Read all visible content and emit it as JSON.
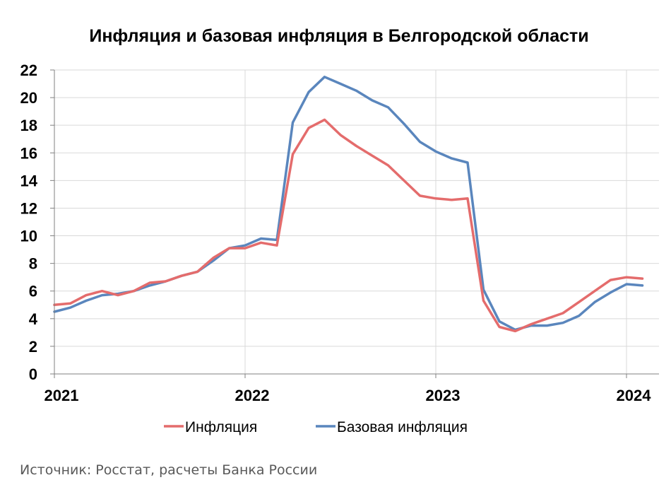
{
  "chart_data": {
    "type": "line",
    "title": "Инфляция и базовая инфляция в Белгородской области",
    "xlabel": "",
    "ylabel": "",
    "ylim": [
      0,
      22
    ],
    "yticks": [
      "0",
      "2",
      "4",
      "6",
      "8",
      "10",
      "12",
      "14",
      "16",
      "18",
      "20",
      "22"
    ],
    "xticks": [
      "2021",
      "2022",
      "2023",
      "2024"
    ],
    "x": [
      "2021-01",
      "2021-02",
      "2021-03",
      "2021-04",
      "2021-05",
      "2021-06",
      "2021-07",
      "2021-08",
      "2021-09",
      "2021-10",
      "2021-11",
      "2021-12",
      "2022-01",
      "2022-02",
      "2022-03",
      "2022-04",
      "2022-05",
      "2022-06",
      "2022-07",
      "2022-08",
      "2022-09",
      "2022-10",
      "2022-11",
      "2022-12",
      "2023-01",
      "2023-02",
      "2023-03",
      "2023-04",
      "2023-05",
      "2023-06",
      "2023-07",
      "2023-08",
      "2023-09",
      "2023-10",
      "2023-11",
      "2023-12",
      "2024-01",
      "2024-02"
    ],
    "grid": true,
    "legend_position": "bottom",
    "series": [
      {
        "name": "Инфляция",
        "color": "#e46c6c",
        "values": [
          5.0,
          5.1,
          5.7,
          6.0,
          5.7,
          6.0,
          6.6,
          6.7,
          7.1,
          7.4,
          8.4,
          9.1,
          9.1,
          9.5,
          9.3,
          15.9,
          17.8,
          18.4,
          17.3,
          16.5,
          15.8,
          15.1,
          14.0,
          12.9,
          12.7,
          12.6,
          12.7,
          5.3,
          3.4,
          3.1,
          3.6,
          4.0,
          4.4,
          5.2,
          6.0,
          6.8,
          7.0,
          6.9
        ]
      },
      {
        "name": "Базовая инфляция",
        "color": "#5a86bd",
        "values": [
          4.5,
          4.8,
          5.3,
          5.7,
          5.8,
          6.0,
          6.4,
          6.7,
          7.1,
          7.4,
          8.2,
          9.1,
          9.3,
          9.8,
          9.7,
          18.2,
          20.4,
          21.5,
          21.0,
          20.5,
          19.8,
          19.3,
          18.1,
          16.8,
          16.1,
          15.6,
          15.3,
          6.1,
          3.8,
          3.2,
          3.5,
          3.5,
          3.7,
          4.2,
          5.2,
          5.9,
          6.5,
          6.4
        ]
      }
    ]
  },
  "footer": {
    "source": "Источник: Росстат, расчеты Банка России"
  }
}
